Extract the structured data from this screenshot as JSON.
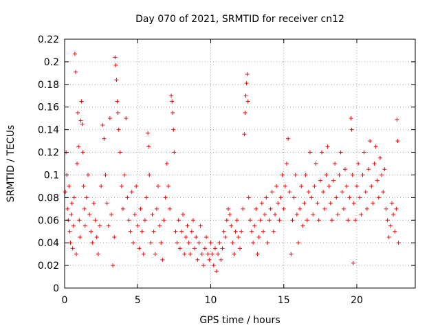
{
  "chart_data": {
    "type": "scatter",
    "title": "Day 070 of 2021, SRMTID for receiver cn12",
    "xlabel": "GPS time / hours",
    "ylabel": "SRMTID / TECUs",
    "xlim": [
      0,
      24
    ],
    "ylim": [
      0,
      0.22
    ],
    "xticks": [
      0,
      5,
      10,
      15,
      20
    ],
    "xtick_labels": [
      "0",
      "5",
      "10",
      "15",
      "20"
    ],
    "yticks": [
      0,
      0.02,
      0.04,
      0.06,
      0.08,
      0.1,
      0.12,
      0.14,
      0.16,
      0.18,
      0.2,
      0.22
    ],
    "ytick_labels": [
      "0",
      "0.02",
      "0.04",
      "0.06",
      "0.08",
      "0.1",
      "0.12",
      "0.14",
      "0.16",
      "0.18",
      "0.2",
      "0.22"
    ],
    "grid": true,
    "marker": "+",
    "color": "#ff0000",
    "series": [
      {
        "name": "SRMTID",
        "points": [
          [
            0.05,
            0.085
          ],
          [
            0.1,
            0.12
          ],
          [
            0.15,
            0.1
          ],
          [
            0.2,
            0.07
          ],
          [
            0.25,
            0.06
          ],
          [
            0.3,
            0.09
          ],
          [
            0.35,
            0.05
          ],
          [
            0.4,
            0.04
          ],
          [
            0.45,
            0.065
          ],
          [
            0.5,
            0.075
          ],
          [
            0.55,
            0.035
          ],
          [
            0.6,
            0.055
          ],
          [
            0.65,
            0.08
          ],
          [
            0.7,
            0.207
          ],
          [
            0.75,
            0.191
          ],
          [
            0.8,
            0.03
          ],
          [
            0.85,
            0.11
          ],
          [
            0.9,
            0.155
          ],
          [
            0.95,
            0.125
          ],
          [
            1.0,
            0.06
          ],
          [
            1.05,
            0.045
          ],
          [
            1.1,
            0.148
          ],
          [
            1.15,
            0.165
          ],
          [
            1.2,
            0.145
          ],
          [
            1.25,
            0.12
          ],
          [
            1.3,
            0.09
          ],
          [
            1.35,
            0.07
          ],
          [
            1.4,
            0.055
          ],
          [
            1.5,
            0.08
          ],
          [
            1.6,
            0.1
          ],
          [
            1.7,
            0.065
          ],
          [
            1.8,
            0.05
          ],
          [
            1.9,
            0.04
          ],
          [
            2.0,
            0.075
          ],
          [
            2.1,
            0.06
          ],
          [
            2.2,
            0.045
          ],
          [
            2.3,
            0.03
          ],
          [
            2.4,
            0.055
          ],
          [
            2.5,
            0.09
          ],
          [
            2.6,
            0.144
          ],
          [
            2.7,
            0.132
          ],
          [
            2.8,
            0.1
          ],
          [
            2.9,
            0.075
          ],
          [
            3.0,
            0.055
          ],
          [
            3.1,
            0.15
          ],
          [
            3.2,
            0.065
          ],
          [
            3.3,
            0.02
          ],
          [
            3.4,
            0.045
          ],
          [
            3.45,
            0.204
          ],
          [
            3.5,
            0.197
          ],
          [
            3.55,
            0.184
          ],
          [
            3.6,
            0.165
          ],
          [
            3.65,
            0.155
          ],
          [
            3.7,
            0.14
          ],
          [
            3.8,
            0.12
          ],
          [
            3.9,
            0.09
          ],
          [
            4.0,
            0.07
          ],
          [
            4.1,
            0.1
          ],
          [
            4.2,
            0.15
          ],
          [
            4.3,
            0.08
          ],
          [
            4.4,
            0.06
          ],
          [
            4.5,
            0.05
          ],
          [
            4.6,
            0.085
          ],
          [
            4.7,
            0.04
          ],
          [
            4.8,
            0.065
          ],
          [
            4.9,
            0.09
          ],
          [
            5.0,
            0.055
          ],
          [
            5.1,
            0.035
          ],
          [
            5.2,
            0.07
          ],
          [
            5.3,
            0.05
          ],
          [
            5.4,
            0.03
          ],
          [
            5.5,
            0.06
          ],
          [
            5.6,
            0.08
          ],
          [
            5.7,
            0.137
          ],
          [
            5.75,
            0.125
          ],
          [
            5.8,
            0.1
          ],
          [
            5.9,
            0.04
          ],
          [
            6.0,
            0.065
          ],
          [
            6.1,
            0.05
          ],
          [
            6.2,
            0.03
          ],
          [
            6.3,
            0.07
          ],
          [
            6.4,
            0.09
          ],
          [
            6.5,
            0.055
          ],
          [
            6.6,
            0.04
          ],
          [
            6.7,
            0.025
          ],
          [
            6.8,
            0.06
          ],
          [
            6.9,
            0.08
          ],
          [
            7.0,
            0.11
          ],
          [
            7.1,
            0.09
          ],
          [
            7.2,
            0.07
          ],
          [
            7.3,
            0.17
          ],
          [
            7.35,
            0.165
          ],
          [
            7.4,
            0.155
          ],
          [
            7.45,
            0.14
          ],
          [
            7.5,
            0.12
          ],
          [
            7.6,
            0.05
          ],
          [
            7.7,
            0.04
          ],
          [
            7.8,
            0.06
          ],
          [
            7.9,
            0.035
          ],
          [
            8.0,
            0.05
          ],
          [
            8.1,
            0.065
          ],
          [
            8.2,
            0.03
          ],
          [
            8.3,
            0.045
          ],
          [
            8.4,
            0.055
          ],
          [
            8.5,
            0.04
          ],
          [
            8.6,
            0.03
          ],
          [
            8.7,
            0.05
          ],
          [
            8.8,
            0.06
          ],
          [
            8.9,
            0.035
          ],
          [
            9.0,
            0.045
          ],
          [
            9.1,
            0.025
          ],
          [
            9.2,
            0.04
          ],
          [
            9.3,
            0.055
          ],
          [
            9.4,
            0.03
          ],
          [
            9.5,
            0.02
          ],
          [
            9.6,
            0.035
          ],
          [
            9.7,
            0.045
          ],
          [
            9.8,
            0.03
          ],
          [
            9.9,
            0.025
          ],
          [
            10.0,
            0.04
          ],
          [
            10.1,
            0.03
          ],
          [
            10.2,
            0.02
          ],
          [
            10.3,
            0.035
          ],
          [
            10.4,
            0.015
          ],
          [
            10.5,
            0.03
          ],
          [
            10.6,
            0.04
          ],
          [
            10.7,
            0.025
          ],
          [
            10.8,
            0.035
          ],
          [
            10.9,
            0.05
          ],
          [
            11.0,
            0.045
          ],
          [
            11.1,
            0.06
          ],
          [
            11.2,
            0.07
          ],
          [
            11.3,
            0.065
          ],
          [
            11.4,
            0.055
          ],
          [
            11.5,
            0.04
          ],
          [
            11.6,
            0.03
          ],
          [
            11.7,
            0.05
          ],
          [
            11.8,
            0.06
          ],
          [
            11.9,
            0.045
          ],
          [
            12.0,
            0.035
          ],
          [
            12.1,
            0.05
          ],
          [
            12.2,
            0.07
          ],
          [
            12.3,
            0.136
          ],
          [
            12.35,
            0.155
          ],
          [
            12.4,
            0.17
          ],
          [
            12.45,
            0.181
          ],
          [
            12.5,
            0.189
          ],
          [
            12.55,
            0.165
          ],
          [
            12.6,
            0.08
          ],
          [
            12.7,
            0.06
          ],
          [
            12.8,
            0.05
          ],
          [
            12.9,
            0.04
          ],
          [
            13.0,
            0.055
          ],
          [
            13.1,
            0.07
          ],
          [
            13.2,
            0.03
          ],
          [
            13.3,
            0.045
          ],
          [
            13.4,
            0.06
          ],
          [
            13.5,
            0.075
          ],
          [
            13.6,
            0.05
          ],
          [
            13.7,
            0.065
          ],
          [
            13.8,
            0.08
          ],
          [
            13.9,
            0.04
          ],
          [
            14.0,
            0.06
          ],
          [
            14.1,
            0.07
          ],
          [
            14.2,
            0.085
          ],
          [
            14.3,
            0.05
          ],
          [
            14.4,
            0.065
          ],
          [
            14.5,
            0.09
          ],
          [
            14.6,
            0.075
          ],
          [
            14.7,
            0.06
          ],
          [
            14.8,
            0.08
          ],
          [
            14.9,
            0.1
          ],
          [
            15.0,
            0.07
          ],
          [
            15.1,
            0.09
          ],
          [
            15.2,
            0.11
          ],
          [
            15.3,
            0.132
          ],
          [
            15.4,
            0.085
          ],
          [
            15.5,
            0.03
          ],
          [
            15.6,
            0.06
          ],
          [
            15.7,
            0.08
          ],
          [
            15.8,
            0.1
          ],
          [
            15.9,
            0.065
          ],
          [
            16.0,
            0.04
          ],
          [
            16.1,
            0.07
          ],
          [
            16.2,
            0.09
          ],
          [
            16.3,
            0.055
          ],
          [
            16.4,
            0.075
          ],
          [
            16.5,
            0.1
          ],
          [
            16.6,
            0.06
          ],
          [
            16.7,
            0.085
          ],
          [
            16.8,
            0.12
          ],
          [
            16.9,
            0.08
          ],
          [
            17.0,
            0.065
          ],
          [
            17.1,
            0.09
          ],
          [
            17.2,
            0.11
          ],
          [
            17.3,
            0.075
          ],
          [
            17.4,
            0.06
          ],
          [
            17.5,
            0.095
          ],
          [
            17.6,
            0.12
          ],
          [
            17.7,
            0.085
          ],
          [
            17.8,
            0.07
          ],
          [
            17.9,
            0.1
          ],
          [
            18.0,
            0.125
          ],
          [
            18.1,
            0.09
          ],
          [
            18.2,
            0.075
          ],
          [
            18.3,
            0.06
          ],
          [
            18.4,
            0.095
          ],
          [
            18.5,
            0.11
          ],
          [
            18.6,
            0.08
          ],
          [
            18.7,
            0.065
          ],
          [
            18.8,
            0.1
          ],
          [
            18.9,
            0.12
          ],
          [
            19.0,
            0.085
          ],
          [
            19.1,
            0.07
          ],
          [
            19.2,
            0.105
          ],
          [
            19.3,
            0.09
          ],
          [
            19.4,
            0.06
          ],
          [
            19.5,
            0.08
          ],
          [
            19.6,
            0.15
          ],
          [
            19.65,
            0.14
          ],
          [
            19.7,
            0.1
          ],
          [
            19.75,
            0.022
          ],
          [
            19.8,
            0.075
          ],
          [
            19.9,
            0.06
          ],
          [
            20.0,
            0.09
          ],
          [
            20.1,
            0.11
          ],
          [
            20.2,
            0.08
          ],
          [
            20.3,
            0.065
          ],
          [
            20.4,
            0.1
          ],
          [
            20.5,
            0.12
          ],
          [
            20.6,
            0.085
          ],
          [
            20.7,
            0.07
          ],
          [
            20.8,
            0.105
          ],
          [
            20.9,
            0.13
          ],
          [
            21.0,
            0.09
          ],
          [
            21.1,
            0.075
          ],
          [
            21.2,
            0.11
          ],
          [
            21.3,
            0.125
          ],
          [
            21.4,
            0.095
          ],
          [
            21.5,
            0.08
          ],
          [
            21.6,
            0.115
          ],
          [
            21.7,
            0.1
          ],
          [
            21.8,
            0.085
          ],
          [
            21.9,
            0.105
          ],
          [
            22.0,
            0.07
          ],
          [
            22.1,
            0.06
          ],
          [
            22.2,
            0.045
          ],
          [
            22.3,
            0.055
          ],
          [
            22.4,
            0.075
          ],
          [
            22.5,
            0.065
          ],
          [
            22.6,
            0.05
          ],
          [
            22.7,
            0.07
          ],
          [
            22.75,
            0.149
          ],
          [
            22.8,
            0.13
          ],
          [
            22.85,
            0.04
          ]
        ]
      }
    ]
  }
}
